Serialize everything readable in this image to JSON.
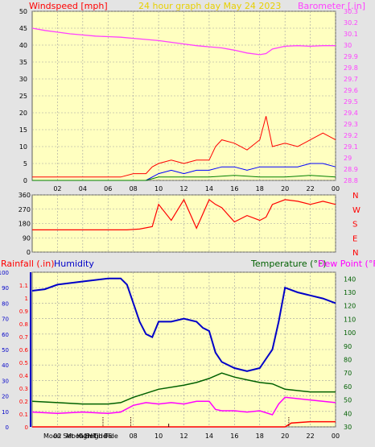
{
  "colors": {
    "plot_bg": "#ffffc0",
    "grid": "#a0a0a0",
    "wind_axis": "#ff0000",
    "barometer": "#ff40ff",
    "title": "#e8d000",
    "wind_gust": "#ff0000",
    "wind_avg": "#0000ff",
    "wind_low": "#008000",
    "direction": "#ff0000",
    "rainfall": "#ff0000",
    "humidity": "#0000c8",
    "temperature": "#006000",
    "dew_point": "#ff00ff",
    "event_marker": "#400000"
  },
  "chart_data": [
    {
      "type": "line",
      "title": "24 hour graph day   May 24 2023",
      "ylabel_left": "Windspeed [mph]",
      "ylabel_right": "Barometer [.in]",
      "x_ticks": [
        "02",
        "04",
        "06",
        "08",
        "10",
        "12",
        "14",
        "16",
        "18",
        "20",
        "22",
        "00"
      ],
      "ylim_left": [
        0,
        50
      ],
      "y_ticks_left": [
        "0",
        "5",
        "10",
        "15",
        "20",
        "25",
        "30",
        "35",
        "40",
        "45",
        "50"
      ],
      "ylim_right": [
        28.8,
        30.3
      ],
      "y_ticks_right": [
        "28.8",
        "28.9",
        "29",
        "29.1",
        "29.2",
        "29.3",
        "29.4",
        "29.5",
        "29.6",
        "29.7",
        "29.8",
        "29.9",
        "30",
        "30.1",
        "30.2",
        "30.3"
      ],
      "grid": true,
      "series": [
        {
          "name": "Barometer [.in]",
          "axis": "right",
          "x": [
            0,
            1,
            2,
            3,
            4,
            5,
            6,
            7,
            8,
            9,
            10,
            11,
            12,
            13,
            14,
            15,
            16,
            17,
            18,
            18.5,
            19,
            20,
            21,
            22,
            23,
            24
          ],
          "values": [
            30.15,
            30.13,
            30.115,
            30.1,
            30.09,
            30.08,
            30.075,
            30.07,
            30.06,
            30.05,
            30.04,
            30.025,
            30.01,
            29.995,
            29.985,
            29.975,
            29.955,
            29.93,
            29.915,
            29.925,
            29.965,
            29.99,
            29.995,
            29.99,
            29.995,
            29.995
          ]
        },
        {
          "name": "Wind gust",
          "axis": "left",
          "x": [
            0,
            7,
            8,
            9,
            9.5,
            10,
            11,
            12,
            13,
            14,
            14.5,
            15,
            16,
            17,
            18,
            18.5,
            19,
            20,
            21,
            22,
            23,
            24
          ],
          "values": [
            1,
            1,
            2,
            2,
            4,
            5,
            6,
            5,
            6,
            6,
            10,
            12,
            11,
            9,
            12,
            19,
            10,
            11,
            10,
            12,
            14,
            12
          ]
        },
        {
          "name": "Wind average",
          "axis": "left",
          "x": [
            0,
            9,
            10,
            11,
            12,
            13,
            14,
            15,
            16,
            17,
            18,
            19,
            20,
            21,
            22,
            23,
            24
          ],
          "values": [
            0,
            0,
            2,
            3,
            2,
            3,
            3,
            4,
            4,
            3,
            4,
            4,
            4,
            4,
            5,
            5,
            4
          ]
        },
        {
          "name": "Wind low",
          "axis": "left",
          "x": [
            0,
            9,
            10,
            12,
            14,
            16,
            18,
            20,
            22,
            24
          ],
          "values": [
            0,
            0,
            1,
            1,
            1,
            1.5,
            1,
            1,
            1.5,
            1
          ]
        }
      ]
    },
    {
      "type": "line",
      "ylim": [
        0,
        360
      ],
      "y_ticks": [
        "0",
        "90",
        "180",
        "270",
        "360"
      ],
      "compass_labels": [
        "N",
        "W",
        "S",
        "E",
        "N"
      ],
      "grid": true,
      "series": [
        {
          "name": "Wind direction",
          "x": [
            0,
            7.5,
            8.5,
            9.5,
            10,
            11,
            12,
            13,
            14,
            14.5,
            15,
            16,
            17,
            18,
            18.5,
            19,
            20,
            21,
            22,
            23,
            24
          ],
          "values": [
            140,
            140,
            145,
            160,
            300,
            200,
            330,
            150,
            330,
            300,
            280,
            190,
            230,
            200,
            220,
            300,
            330,
            320,
            300,
            320,
            300
          ]
        }
      ]
    },
    {
      "type": "line",
      "ylabel_left_1": "Rainfall (.in)",
      "ylabel_left_2": "Humidity",
      "ylabel_right_1": "Temperature (°F)",
      "ylabel_right_2": "Dew Point (°F)",
      "x_ticks": [
        "02",
        "04",
        "06",
        "08",
        "10",
        "12",
        "14",
        "16",
        "18",
        "20",
        "22",
        "00"
      ],
      "ylim_humidity": [
        0,
        100
      ],
      "y_ticks_humidity": [
        "0",
        "10",
        "20",
        "30",
        "40",
        "50",
        "60",
        "70",
        "80",
        "90",
        "100"
      ],
      "ylim_rain": [
        0,
        1.2
      ],
      "y_ticks_rain": [
        "0",
        "0.1",
        "0.2",
        "0.3",
        "0.4",
        "0.5",
        "0.6",
        "0.7",
        "0.8",
        "0.9",
        "1",
        "1.1"
      ],
      "ylim_temp": [
        30,
        145
      ],
      "y_ticks_temp": [
        "30",
        "40",
        "50",
        "60",
        "70",
        "80",
        "90",
        "100",
        "110",
        "120",
        "130",
        "140"
      ],
      "annotations": [
        "Moon Set",
        "Moon Set",
        "High Tide",
        "High Tide"
      ],
      "grid": true,
      "series": [
        {
          "name": "Humidity",
          "axis": "humidity",
          "x": [
            0,
            1,
            2,
            4,
            6,
            7,
            7.5,
            8,
            8.5,
            9,
            9.5,
            10,
            11,
            12,
            13,
            13.5,
            14,
            14.5,
            15,
            16,
            17,
            18,
            18.5,
            19,
            19.5,
            20,
            21,
            22,
            23,
            24
          ],
          "values": [
            88,
            89,
            92,
            94,
            96,
            96,
            92,
            80,
            68,
            60,
            58,
            68,
            68,
            70,
            68,
            64,
            62,
            48,
            42,
            38,
            36,
            38,
            44,
            50,
            68,
            90,
            87,
            85,
            83,
            80
          ]
        },
        {
          "name": "Temperature (°F)",
          "axis": "temp",
          "x": [
            0,
            2,
            4,
            6,
            7,
            8,
            10,
            12,
            13,
            14,
            15,
            16,
            17,
            18,
            19,
            20,
            22,
            24
          ],
          "values": [
            49,
            48,
            47,
            47,
            48,
            52,
            58,
            61,
            63,
            66,
            70,
            67,
            65,
            63,
            62,
            58,
            56,
            56
          ]
        },
        {
          "name": "Dew Point (°F)",
          "axis": "temp",
          "x": [
            0,
            2,
            4,
            6,
            7,
            8,
            9,
            10,
            11,
            12,
            13,
            14,
            14.5,
            15,
            16,
            17,
            18,
            19,
            19.5,
            20,
            22,
            24
          ],
          "values": [
            41,
            40,
            41,
            40,
            41,
            46,
            48,
            47,
            48,
            47,
            49,
            49,
            43,
            42,
            42,
            41,
            42,
            39,
            47,
            52,
            50,
            48
          ]
        },
        {
          "name": "Rainfall (.in)",
          "axis": "rain",
          "x": [
            0,
            20,
            20.5,
            22,
            24
          ],
          "values": [
            0,
            0,
            0.03,
            0.04,
            0.04
          ]
        }
      ]
    }
  ]
}
